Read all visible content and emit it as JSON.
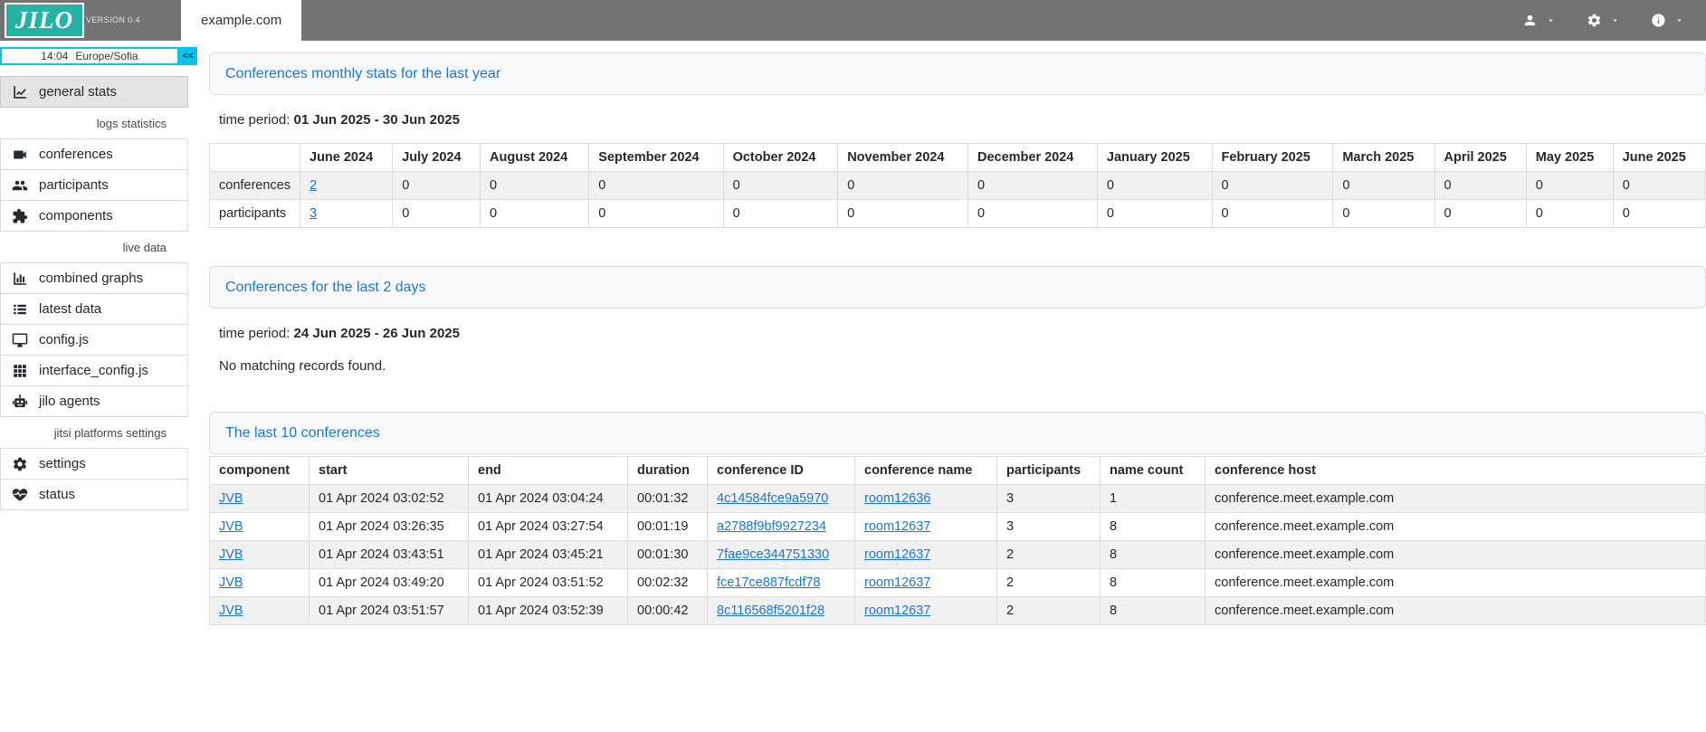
{
  "topbar": {
    "logo": "JILO",
    "version": "VERSION 0.4",
    "tab": "example.com"
  },
  "sidebar": {
    "clock": {
      "time": "14:04",
      "zone": "Europe/Sofia"
    },
    "collapse": "<<",
    "items": [
      {
        "type": "item",
        "icon": "chart-line-icon",
        "label": "general stats",
        "active": true
      },
      {
        "type": "section",
        "label": "logs statistics"
      },
      {
        "type": "item",
        "icon": "video-camera-icon",
        "label": "conferences"
      },
      {
        "type": "item",
        "icon": "users-icon",
        "label": "participants"
      },
      {
        "type": "item",
        "icon": "puzzle-piece-icon",
        "label": "components"
      },
      {
        "type": "section",
        "label": "live data"
      },
      {
        "type": "item",
        "icon": "bar-chart-icon",
        "label": "combined graphs"
      },
      {
        "type": "item",
        "icon": "list-icon",
        "label": "latest data"
      },
      {
        "type": "item",
        "icon": "monitor-icon",
        "label": "config.js"
      },
      {
        "type": "item",
        "icon": "grid-icon",
        "label": "interface_config.js"
      },
      {
        "type": "item",
        "icon": "robot-icon",
        "label": "jilo agents"
      },
      {
        "type": "section",
        "label": "jitsi platforms settings"
      },
      {
        "type": "item",
        "icon": "gear-icon",
        "label": "settings"
      },
      {
        "type": "item",
        "icon": "heart-pulse-icon",
        "label": "status"
      }
    ]
  },
  "sections": {
    "monthly": {
      "title": "Conferences monthly stats for the last year",
      "period_label": "time period:",
      "period": "01 Jun 2025 - 30 Jun 2025"
    },
    "last2days": {
      "title": "Conferences for the last 2 days",
      "period_label": "time period:",
      "period": "24 Jun 2025 - 26 Jun 2025",
      "empty": "No matching records found."
    },
    "last10": {
      "title": "The last 10 conferences"
    }
  },
  "tables": {
    "monthly": {
      "columns": [
        "",
        "June 2024",
        "July 2024",
        "August 2024",
        "September 2024",
        "October 2024",
        "November 2024",
        "December 2024",
        "January 2025",
        "February 2025",
        "March 2025",
        "April 2025",
        "May 2025",
        "June 2025"
      ],
      "rows": [
        [
          "conferences",
          {
            "text": "2",
            "link": true
          },
          "0",
          "0",
          "0",
          "0",
          "0",
          "0",
          "0",
          "0",
          "0",
          "0",
          "0",
          "0"
        ],
        [
          "participants",
          {
            "text": "3",
            "link": true
          },
          "0",
          "0",
          "0",
          "0",
          "0",
          "0",
          "0",
          "0",
          "0",
          "0",
          "0",
          "0"
        ]
      ]
    },
    "conferences": {
      "columns": [
        "component",
        "start",
        "end",
        "duration",
        "conference ID",
        "conference name",
        "participants",
        "name count",
        "conference host"
      ],
      "rows": [
        [
          {
            "text": "JVB",
            "link": true
          },
          "01 Apr 2024 03:02:52",
          "01 Apr 2024 03:04:24",
          "00:01:32",
          {
            "text": "4c14584fce9a5970",
            "link": true
          },
          {
            "text": "room12636",
            "link": true
          },
          "3",
          "1",
          "conference.meet.example.com"
        ],
        [
          {
            "text": "JVB",
            "link": true
          },
          "01 Apr 2024 03:26:35",
          "01 Apr 2024 03:27:54",
          "00:01:19",
          {
            "text": "a2788f9bf9927234",
            "link": true
          },
          {
            "text": "room12637",
            "link": true
          },
          "3",
          "8",
          "conference.meet.example.com"
        ],
        [
          {
            "text": "JVB",
            "link": true
          },
          "01 Apr 2024 03:43:51",
          "01 Apr 2024 03:45:21",
          "00:01:30",
          {
            "text": "7fae9ce344751330",
            "link": true
          },
          {
            "text": "room12637",
            "link": true
          },
          "2",
          "8",
          "conference.meet.example.com"
        ],
        [
          {
            "text": "JVB",
            "link": true
          },
          "01 Apr 2024 03:49:20",
          "01 Apr 2024 03:51:52",
          "00:02:32",
          {
            "text": "fce17ce887fcdf78",
            "link": true
          },
          {
            "text": "room12637",
            "link": true
          },
          "2",
          "8",
          "conference.meet.example.com"
        ],
        [
          {
            "text": "JVB",
            "link": true
          },
          "01 Apr 2024 03:51:57",
          "01 Apr 2024 03:52:39",
          "00:00:42",
          {
            "text": "8c116568f5201f28",
            "link": true
          },
          {
            "text": "room12637",
            "link": true
          },
          "2",
          "8",
          "conference.meet.example.com"
        ]
      ]
    }
  }
}
